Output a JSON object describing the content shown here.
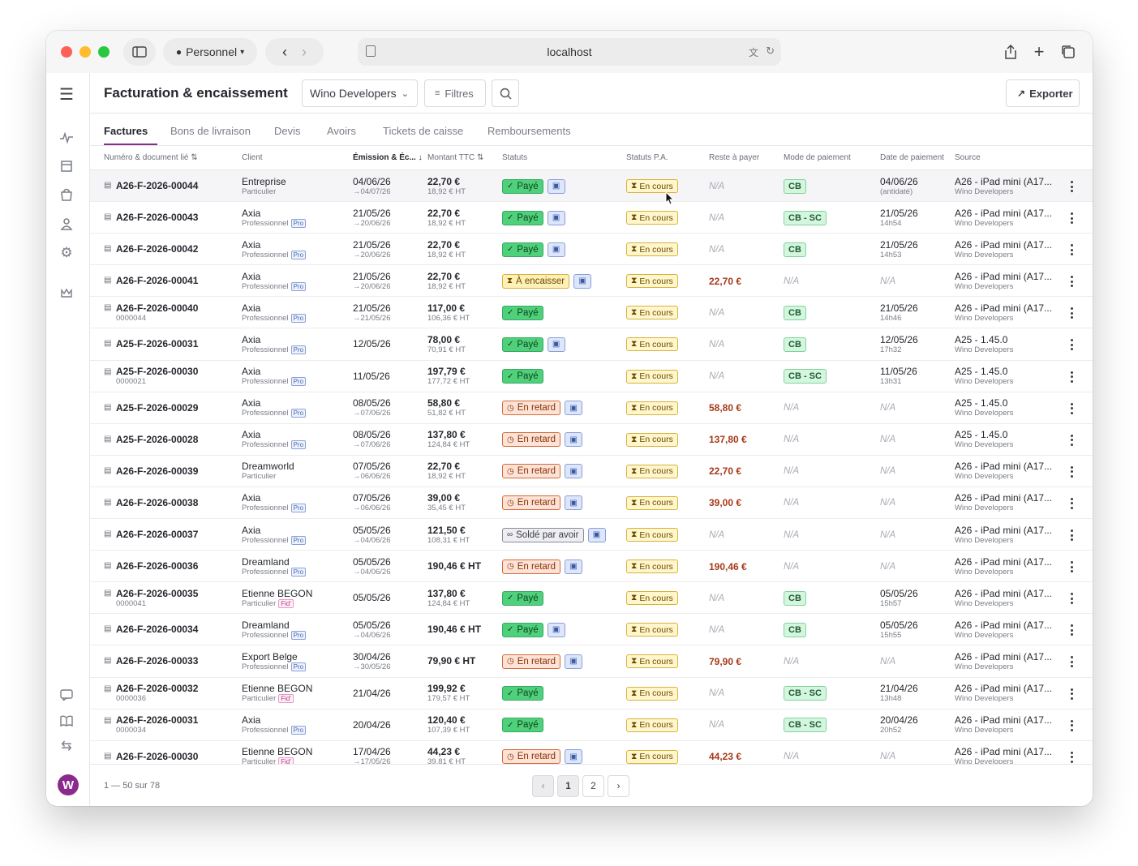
{
  "browser": {
    "profile_label": "Personnel",
    "url": "localhost"
  },
  "header": {
    "title": "Facturation & encaissement",
    "org_select": "Wino Developers",
    "filters_label": "Filtres",
    "export_label": "Exporter"
  },
  "tabs": [
    "Factures",
    "Bons de livraison",
    "Devis",
    "Avoirs",
    "Tickets de caisse",
    "Remboursements"
  ],
  "columns": {
    "numero": "Numéro & document lié",
    "client": "Client",
    "emission": "Émission & Éc...",
    "montant": "Montant TTC",
    "statuts": "Statuts",
    "statuts_pa": "Statuts P.A.",
    "reste": "Reste à payer",
    "mode": "Mode de paiement",
    "date_paiement": "Date de paiement",
    "source": "Source"
  },
  "icons": {
    "sort": "sort-arrows-icon",
    "sort_down": "arrow-down-icon",
    "doc": "document-icon",
    "hourglass": "hourglass-icon",
    "check": "check-circle-icon",
    "clock": "clock-icon",
    "link": "link-icon"
  },
  "rows": [
    {
      "num": "A26-F-2026-00044",
      "num_sub": "",
      "client": "Entreprise",
      "client_type": "Particulier",
      "client_tag": "",
      "emission": "04/06/26",
      "echeance": "→04/07/26",
      "ttc": "22,70 €",
      "ht": "18,92 € HT",
      "status": "Payé",
      "status_kind": "paye",
      "doc": true,
      "pa": "En cours",
      "reste": "N/A",
      "mode": "CB",
      "date_paiement": "04/06/26",
      "date_sub": "(antidaté)",
      "source": "A26 - iPad mini (A17...",
      "source_sub": "Wino Developers"
    },
    {
      "num": "A26-F-2026-00043",
      "num_sub": "",
      "client": "Axia",
      "client_type": "Professionnel",
      "client_tag": "Pro",
      "emission": "21/05/26",
      "echeance": "→20/06/26",
      "ttc": "22,70 €",
      "ht": "18,92 € HT",
      "status": "Payé",
      "status_kind": "paye",
      "doc": true,
      "pa": "En cours",
      "reste": "N/A",
      "mode": "CB - SC",
      "date_paiement": "21/05/26",
      "date_sub": "14h54",
      "source": "A26 - iPad mini (A17...",
      "source_sub": "Wino Developers"
    },
    {
      "num": "A26-F-2026-00042",
      "num_sub": "",
      "client": "Axia",
      "client_type": "Professionnel",
      "client_tag": "Pro",
      "emission": "21/05/26",
      "echeance": "→20/06/26",
      "ttc": "22,70 €",
      "ht": "18,92 € HT",
      "status": "Payé",
      "status_kind": "paye",
      "doc": true,
      "pa": "En cours",
      "reste": "N/A",
      "mode": "CB",
      "date_paiement": "21/05/26",
      "date_sub": "14h53",
      "source": "A26 - iPad mini (A17...",
      "source_sub": "Wino Developers"
    },
    {
      "num": "A26-F-2026-00041",
      "num_sub": "",
      "client": "Axia",
      "client_type": "Professionnel",
      "client_tag": "Pro",
      "emission": "21/05/26",
      "echeance": "→20/06/26",
      "ttc": "22,70 €",
      "ht": "18,92 € HT",
      "status": "À encaisser",
      "status_kind": "encaisser",
      "doc": true,
      "pa": "En cours",
      "reste": "22,70 €",
      "mode": "N/A",
      "date_paiement": "N/A",
      "date_sub": "",
      "source": "A26 - iPad mini (A17...",
      "source_sub": "Wino Developers"
    },
    {
      "num": "A26-F-2026-00040",
      "num_sub": "0000044",
      "client": "Axia",
      "client_type": "Professionnel",
      "client_tag": "Pro",
      "emission": "21/05/26",
      "echeance": "→21/05/26",
      "ttc": "117,00 €",
      "ht": "106,36 € HT",
      "status": "Payé",
      "status_kind": "paye",
      "doc": false,
      "pa": "En cours",
      "reste": "N/A",
      "mode": "CB",
      "date_paiement": "21/05/26",
      "date_sub": "14h46",
      "source": "A26 - iPad mini (A17...",
      "source_sub": "Wino Developers"
    },
    {
      "num": "A25-F-2026-00031",
      "num_sub": "",
      "client": "Axia",
      "client_type": "Professionnel",
      "client_tag": "Pro",
      "emission": "12/05/26",
      "echeance": "",
      "ttc": "78,00 €",
      "ht": "70,91 € HT",
      "status": "Payé",
      "status_kind": "paye",
      "doc": true,
      "pa": "En cours",
      "reste": "N/A",
      "mode": "CB",
      "date_paiement": "12/05/26",
      "date_sub": "17h32",
      "source": "A25 - 1.45.0",
      "source_sub": "Wino Developers"
    },
    {
      "num": "A25-F-2026-00030",
      "num_sub": "0000021",
      "client": "Axia",
      "client_type": "Professionnel",
      "client_tag": "Pro",
      "emission": "11/05/26",
      "echeance": "",
      "ttc": "197,79 €",
      "ht": "177,72 € HT",
      "status": "Payé",
      "status_kind": "paye",
      "doc": false,
      "pa": "En cours",
      "reste": "N/A",
      "mode": "CB - SC",
      "date_paiement": "11/05/26",
      "date_sub": "13h31",
      "source": "A25 - 1.45.0",
      "source_sub": "Wino Developers"
    },
    {
      "num": "A25-F-2026-00029",
      "num_sub": "",
      "client": "Axia",
      "client_type": "Professionnel",
      "client_tag": "Pro",
      "emission": "08/05/26",
      "echeance": "→07/06/26",
      "ttc": "58,80 €",
      "ht": "51,82 € HT",
      "status": "En retard",
      "status_kind": "retard",
      "doc": true,
      "pa": "En cours",
      "reste": "58,80 €",
      "mode": "N/A",
      "date_paiement": "N/A",
      "date_sub": "",
      "source": "A25 - 1.45.0",
      "source_sub": "Wino Developers"
    },
    {
      "num": "A25-F-2026-00028",
      "num_sub": "",
      "client": "Axia",
      "client_type": "Professionnel",
      "client_tag": "Pro",
      "emission": "08/05/26",
      "echeance": "→07/06/26",
      "ttc": "137,80 €",
      "ht": "124,84 € HT",
      "status": "En retard",
      "status_kind": "retard",
      "doc": true,
      "pa": "En cours",
      "reste": "137,80 €",
      "mode": "N/A",
      "date_paiement": "N/A",
      "date_sub": "",
      "source": "A25 - 1.45.0",
      "source_sub": "Wino Developers"
    },
    {
      "num": "A26-F-2026-00039",
      "num_sub": "",
      "client": "Dreamworld",
      "client_type": "Particulier",
      "client_tag": "",
      "emission": "07/05/26",
      "echeance": "→06/06/26",
      "ttc": "22,70 €",
      "ht": "18,92 € HT",
      "status": "En retard",
      "status_kind": "retard",
      "doc": true,
      "pa": "En cours",
      "reste": "22,70 €",
      "mode": "N/A",
      "date_paiement": "N/A",
      "date_sub": "",
      "source": "A26 - iPad mini (A17...",
      "source_sub": "Wino Developers"
    },
    {
      "num": "A26-F-2026-00038",
      "num_sub": "",
      "client": "Axia",
      "client_type": "Professionnel",
      "client_tag": "Pro",
      "emission": "07/05/26",
      "echeance": "→06/06/26",
      "ttc": "39,00 €",
      "ht": "35,45 € HT",
      "status": "En retard",
      "status_kind": "retard",
      "doc": true,
      "pa": "En cours",
      "reste": "39,00 €",
      "mode": "N/A",
      "date_paiement": "N/A",
      "date_sub": "",
      "source": "A26 - iPad mini (A17...",
      "source_sub": "Wino Developers"
    },
    {
      "num": "A26-F-2026-00037",
      "num_sub": "",
      "client": "Axia",
      "client_type": "Professionnel",
      "client_tag": "Pro",
      "emission": "05/05/26",
      "echeance": "→04/06/26",
      "ttc": "121,50 €",
      "ht": "108,31 € HT",
      "status": "Soldé par avoir",
      "status_kind": "solde",
      "doc": true,
      "pa": "En cours",
      "reste": "N/A",
      "mode": "N/A",
      "date_paiement": "N/A",
      "date_sub": "",
      "source": "A26 - iPad mini (A17...",
      "source_sub": "Wino Developers"
    },
    {
      "num": "A26-F-2026-00036",
      "num_sub": "",
      "client": "Dreamland",
      "client_type": "Professionnel",
      "client_tag": "Pro",
      "emission": "05/05/26",
      "echeance": "→04/06/26",
      "ttc": "190,46 € HT",
      "ht": "",
      "status": "En retard",
      "status_kind": "retard",
      "doc": true,
      "pa": "En cours",
      "reste": "190,46 €",
      "mode": "N/A",
      "date_paiement": "N/A",
      "date_sub": "",
      "source": "A26 - iPad mini (A17...",
      "source_sub": "Wino Developers"
    },
    {
      "num": "A26-F-2026-00035",
      "num_sub": "0000041",
      "client": "Etienne BEGON",
      "client_type": "Particulier",
      "client_tag": "Fid'",
      "emission": "05/05/26",
      "echeance": "",
      "ttc": "137,80 €",
      "ht": "124,84 € HT",
      "status": "Payé",
      "status_kind": "paye",
      "doc": false,
      "pa": "En cours",
      "reste": "N/A",
      "mode": "CB",
      "date_paiement": "05/05/26",
      "date_sub": "15h57",
      "source": "A26 - iPad mini (A17...",
      "source_sub": "Wino Developers"
    },
    {
      "num": "A26-F-2026-00034",
      "num_sub": "",
      "client": "Dreamland",
      "client_type": "Professionnel",
      "client_tag": "Pro",
      "emission": "05/05/26",
      "echeance": "→04/06/26",
      "ttc": "190,46 € HT",
      "ht": "",
      "status": "Payé",
      "status_kind": "paye",
      "doc": true,
      "pa": "En cours",
      "reste": "N/A",
      "mode": "CB",
      "date_paiement": "05/05/26",
      "date_sub": "15h55",
      "source": "A26 - iPad mini (A17...",
      "source_sub": "Wino Developers"
    },
    {
      "num": "A26-F-2026-00033",
      "num_sub": "",
      "client": "Export Belge",
      "client_type": "Professionnel",
      "client_tag": "Pro",
      "emission": "30/04/26",
      "echeance": "→30/05/26",
      "ttc": "79,90 € HT",
      "ht": "",
      "status": "En retard",
      "status_kind": "retard",
      "doc": true,
      "pa": "En cours",
      "reste": "79,90 €",
      "mode": "N/A",
      "date_paiement": "N/A",
      "date_sub": "",
      "source": "A26 - iPad mini (A17...",
      "source_sub": "Wino Developers"
    },
    {
      "num": "A26-F-2026-00032",
      "num_sub": "0000036",
      "client": "Etienne BEGON",
      "client_type": "Particulier",
      "client_tag": "Fid'",
      "emission": "21/04/26",
      "echeance": "",
      "ttc": "199,92 €",
      "ht": "179,57 € HT",
      "status": "Payé",
      "status_kind": "paye",
      "doc": false,
      "pa": "En cours",
      "reste": "N/A",
      "mode": "CB - SC",
      "date_paiement": "21/04/26",
      "date_sub": "13h48",
      "source": "A26 - iPad mini (A17...",
      "source_sub": "Wino Developers"
    },
    {
      "num": "A26-F-2026-00031",
      "num_sub": "0000034",
      "client": "Axia",
      "client_type": "Professionnel",
      "client_tag": "Pro",
      "emission": "20/04/26",
      "echeance": "",
      "ttc": "120,40 €",
      "ht": "107,39 € HT",
      "status": "Payé",
      "status_kind": "paye",
      "doc": false,
      "pa": "En cours",
      "reste": "N/A",
      "mode": "CB - SC",
      "date_paiement": "20/04/26",
      "date_sub": "20h52",
      "source": "A26 - iPad mini (A17...",
      "source_sub": "Wino Developers"
    },
    {
      "num": "A26-F-2026-00030",
      "num_sub": "",
      "client": "Etienne BEGON",
      "client_type": "Particulier",
      "client_tag": "Fid'",
      "emission": "17/04/26",
      "echeance": "→17/05/26",
      "ttc": "44,23 €",
      "ht": "39,81 € HT",
      "status": "En retard",
      "status_kind": "retard",
      "doc": true,
      "pa": "En cours",
      "reste": "44,23 €",
      "mode": "N/A",
      "date_paiement": "N/A",
      "date_sub": "",
      "source": "A26 - iPad mini (A17...",
      "source_sub": "Wino Developers"
    }
  ],
  "footer": {
    "count": "1 — 50 sur 78",
    "pages": [
      "1",
      "2"
    ],
    "current_page": "1"
  },
  "colors": {
    "brand": "#8a2a8e",
    "paye": "#4fd17b",
    "retard": "#fde3d5",
    "due": "#a53a1a"
  }
}
